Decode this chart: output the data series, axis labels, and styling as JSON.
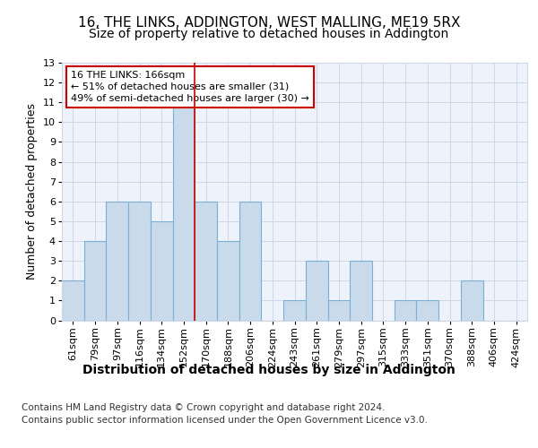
{
  "title": "16, THE LINKS, ADDINGTON, WEST MALLING, ME19 5RX",
  "subtitle": "Size of property relative to detached houses in Addington",
  "xlabel": "Distribution of detached houses by size in Addington",
  "ylabel": "Number of detached properties",
  "categories": [
    "61sqm",
    "79sqm",
    "97sqm",
    "116sqm",
    "134sqm",
    "152sqm",
    "170sqm",
    "188sqm",
    "206sqm",
    "224sqm",
    "243sqm",
    "261sqm",
    "279sqm",
    "297sqm",
    "315sqm",
    "333sqm",
    "351sqm",
    "370sqm",
    "388sqm",
    "406sqm",
    "424sqm"
  ],
  "values": [
    2,
    4,
    6,
    6,
    5,
    11,
    6,
    4,
    6,
    0,
    1,
    3,
    1,
    3,
    0,
    1,
    1,
    0,
    2,
    0,
    0
  ],
  "bar_color": "#c9daea",
  "bar_edge_color": "#7bafd4",
  "red_line_index": 5.5,
  "annotation_text": "16 THE LINKS: 166sqm\n← 51% of detached houses are smaller (31)\n49% of semi-detached houses are larger (30) →",
  "annotation_box_color": "#ffffff",
  "annotation_box_edge": "#cc0000",
  "ylim": [
    0,
    13
  ],
  "yticks": [
    0,
    1,
    2,
    3,
    4,
    5,
    6,
    7,
    8,
    9,
    10,
    11,
    12,
    13
  ],
  "grid_color": "#d0d8e8",
  "plot_background": "#eef2fa",
  "footer": "Contains HM Land Registry data © Crown copyright and database right 2024.\nContains public sector information licensed under the Open Government Licence v3.0.",
  "title_fontsize": 11,
  "subtitle_fontsize": 10,
  "xlabel_fontsize": 10,
  "ylabel_fontsize": 9,
  "tick_fontsize": 8,
  "footer_fontsize": 7.5
}
